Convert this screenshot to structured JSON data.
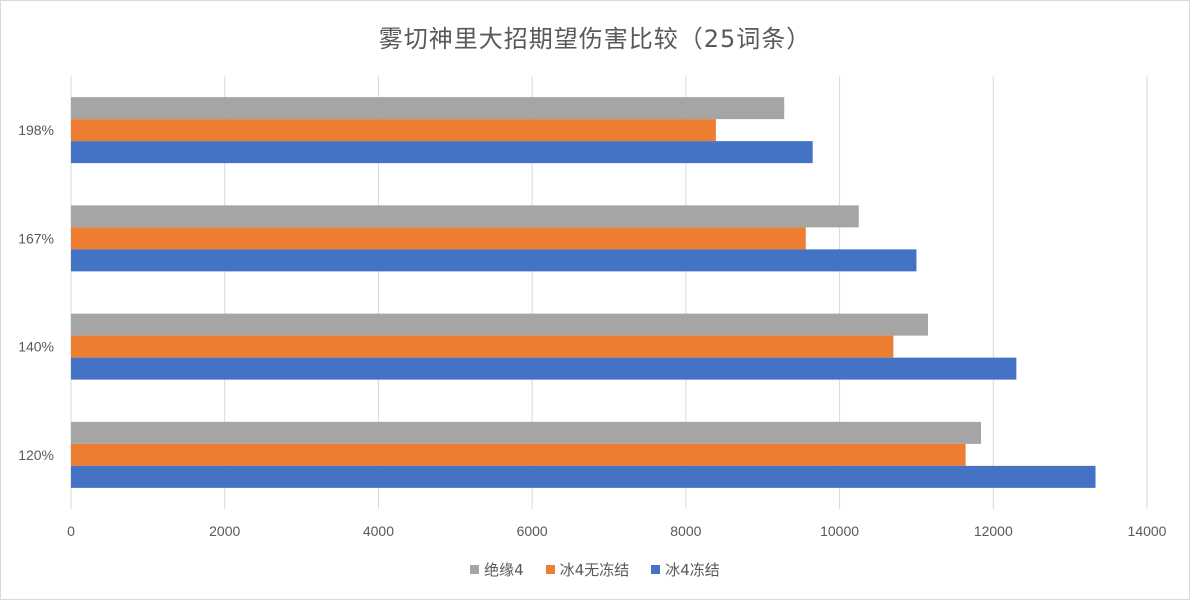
{
  "chart_data": {
    "type": "bar",
    "orientation": "horizontal",
    "title": "雾切神里大招期望伤害比较（25词条）",
    "xlabel": "",
    "ylabel": "",
    "categories": [
      "198%",
      "167%",
      "140%",
      "120%"
    ],
    "xlim": [
      0,
      14000
    ],
    "xticks": [
      0,
      2000,
      4000,
      6000,
      8000,
      10000,
      12000,
      14000
    ],
    "grid": true,
    "legend_position": "bottom",
    "series": [
      {
        "name": "绝缘4",
        "color": "#a5a5a5",
        "values": [
          9280,
          10250,
          11150,
          11840
        ]
      },
      {
        "name": "冰4无冻结",
        "color": "#ed7d31",
        "values": [
          8390,
          9560,
          10700,
          11640
        ]
      },
      {
        "name": "冰4冻结",
        "color": "#4472c4",
        "values": [
          9650,
          11000,
          12300,
          13330
        ]
      }
    ]
  }
}
